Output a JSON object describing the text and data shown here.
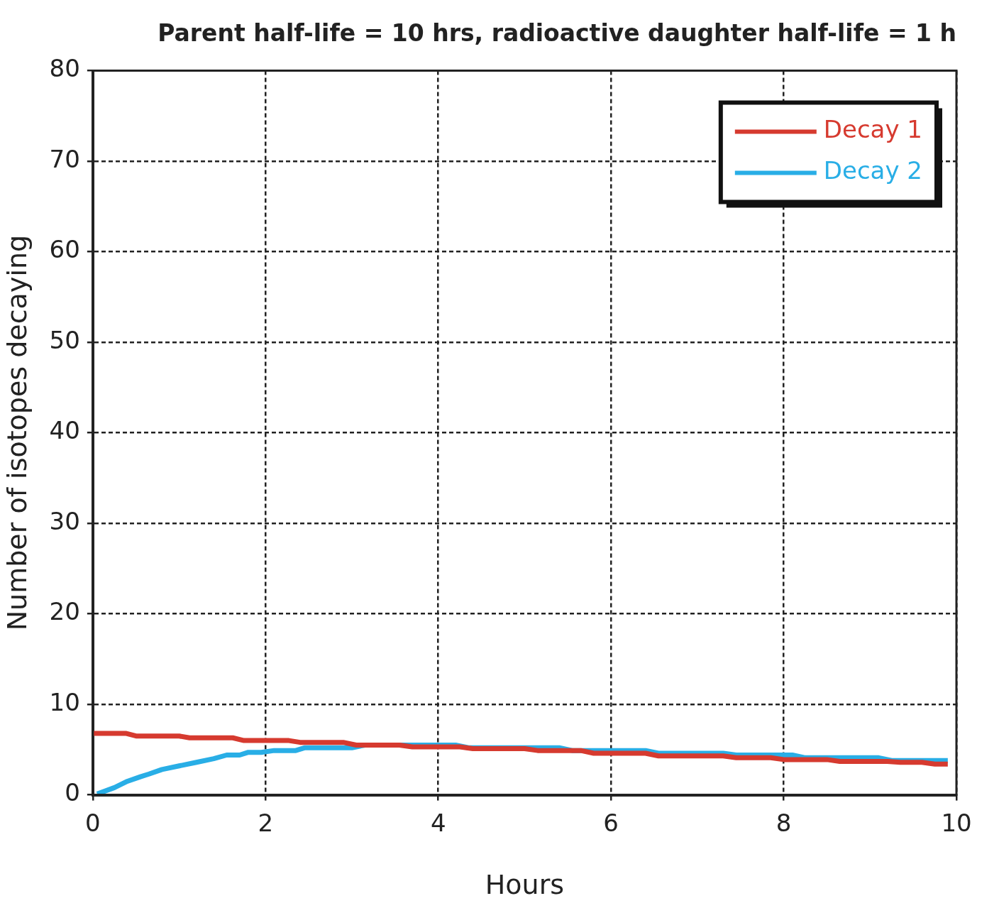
{
  "chart_data": {
    "type": "line",
    "title": "Parent half-life = 10 hrs, radioactive daughter half-life = 1 h",
    "xlabel": "Hours",
    "ylabel": "Number of isotopes decaying",
    "xlim": [
      0,
      10
    ],
    "xticks": [
      0,
      2,
      4,
      6,
      8,
      10
    ],
    "ylim": [
      0,
      80
    ],
    "yticks": [
      0,
      10,
      20,
      30,
      40,
      50,
      60,
      70,
      80
    ],
    "grid": true,
    "legend": "top right",
    "marker": "none",
    "line_style": "solid",
    "series": [
      {
        "name": "Decay 1",
        "color": "#d63a2f",
        "x": [
          0,
          0.38,
          0.5,
          1.0,
          1.12,
          1.62,
          1.75,
          2.27,
          2.4,
          2.9,
          3.05,
          3.55,
          3.7,
          4.25,
          4.4,
          5.0,
          5.15,
          5.65,
          5.8,
          6.4,
          6.55,
          7.3,
          7.45,
          7.85,
          8.0,
          8.5,
          8.65,
          9.2,
          9.35,
          9.6,
          9.75,
          9.9
        ],
        "values": [
          6.8,
          6.8,
          6.5,
          6.5,
          6.3,
          6.3,
          6.0,
          6.0,
          5.8,
          5.8,
          5.5,
          5.5,
          5.3,
          5.3,
          5.1,
          5.1,
          4.9,
          4.9,
          4.6,
          4.6,
          4.3,
          4.3,
          4.1,
          4.1,
          3.9,
          3.9,
          3.7,
          3.7,
          3.6,
          3.6,
          3.4,
          3.4
        ]
      },
      {
        "name": "Decay 2",
        "color": "#29aee6",
        "x": [
          0.05,
          0.25,
          0.4,
          0.55,
          0.65,
          0.8,
          1.0,
          1.2,
          1.4,
          1.55,
          1.7,
          1.8,
          1.95,
          2.1,
          2.35,
          2.45,
          3.0,
          3.15,
          4.2,
          4.35,
          5.4,
          5.55,
          6.4,
          6.55,
          7.3,
          7.45,
          8.1,
          8.25,
          9.1,
          9.25,
          9.9
        ],
        "values": [
          0.1,
          0.8,
          1.5,
          2.0,
          2.3,
          2.8,
          3.2,
          3.6,
          4.0,
          4.4,
          4.4,
          4.7,
          4.7,
          4.9,
          4.9,
          5.2,
          5.2,
          5.5,
          5.5,
          5.2,
          5.2,
          4.9,
          4.9,
          4.6,
          4.6,
          4.4,
          4.4,
          4.1,
          4.1,
          3.8,
          3.8
        ]
      }
    ]
  }
}
